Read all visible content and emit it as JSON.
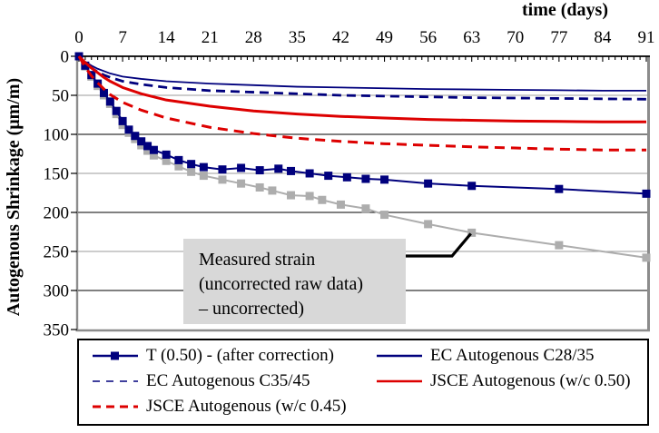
{
  "colors": {
    "navy": "#00007D",
    "red": "#DD0000",
    "gray": "#ADADAD",
    "grid_dark": "#000000",
    "grid_light": "#9B9B9B",
    "plot_border": "#8C8C8C",
    "annotation_bg": "#D8D8D8"
  },
  "axes": {
    "x_title": "time (days)",
    "y_title": "Autogenous Shrinkage (μm/m)"
  },
  "annotation": {
    "line1": "Measured strain",
    "line2": "(uncorrected raw data)",
    "line3": "– uncorrected)",
    "target": {
      "day": 63,
      "value": 226
    }
  },
  "legend": {
    "items": [
      {
        "label": "T (0.50) - (after correction)",
        "color": "navy",
        "style": "solid",
        "marker": "square"
      },
      {
        "label": "EC Autogenous C28/35",
        "color": "navy",
        "style": "solid",
        "marker": "none"
      },
      {
        "label": "EC Autogenous C35/45",
        "color": "navy",
        "style": "dashed",
        "marker": "none"
      },
      {
        "label": "JSCE Autogenous (w/c 0.50)",
        "color": "red",
        "style": "solid",
        "marker": "none"
      },
      {
        "label": "JSCE Autogenous (w/c 0.45)",
        "color": "red",
        "style": "dashed",
        "marker": "none"
      }
    ]
  },
  "chart_data": {
    "type": "line",
    "title": "",
    "xlabel": "time (days)",
    "ylabel": "Autogenous Shrinkage (μm/m)",
    "x_ticks": [
      0,
      7,
      14,
      21,
      28,
      35,
      42,
      49,
      56,
      63,
      70,
      77,
      84,
      91
    ],
    "y_ticks": [
      0,
      50,
      100,
      150,
      200,
      250,
      300,
      350
    ],
    "xlim": [
      0,
      91
    ],
    "ylim": [
      0,
      350
    ],
    "y_axis_inverted": true,
    "grid": "horizontal, every 50 μm/m, alternating dark and light lines",
    "legend_position": "bottom box, two columns",
    "series": [
      {
        "name": "Measured strain (uncorrected raw data)",
        "color": "gray",
        "style": "solid",
        "width": 2,
        "marker": "square",
        "x": [
          0,
          1,
          2,
          3,
          4,
          5,
          6,
          7,
          8,
          9,
          10,
          11,
          12,
          14,
          16,
          18,
          20,
          23,
          26,
          29,
          31,
          34,
          37,
          39,
          42,
          46,
          49,
          56,
          63,
          77,
          91
        ],
        "y": [
          0,
          13,
          26,
          38,
          50,
          61,
          74,
          88,
          98,
          106,
          114,
          121,
          127,
          134,
          141,
          148,
          153,
          158,
          163,
          168,
          172,
          178,
          179,
          184,
          190,
          195,
          203,
          215,
          226,
          242,
          258
        ]
      },
      {
        "name": "T (0.50) - (after correction)",
        "color": "navy",
        "style": "solid",
        "width": 2,
        "marker": "square",
        "x": [
          0,
          1,
          2,
          3,
          4,
          5,
          6,
          7,
          8,
          9,
          10,
          11,
          12,
          14,
          16,
          18,
          20,
          23,
          26,
          29,
          32,
          34,
          37,
          40,
          43,
          46,
          49,
          56,
          63,
          77,
          91
        ],
        "y": [
          0,
          12,
          24,
          35,
          47,
          58,
          70,
          83,
          94,
          102,
          109,
          115,
          120,
          126,
          133,
          138,
          142,
          145,
          143,
          146,
          144,
          147,
          150,
          153,
          155,
          157,
          158,
          163,
          166,
          170,
          176
        ]
      },
      {
        "name": "EC Autogenous C28/35",
        "color": "navy",
        "style": "solid",
        "width": 1.8,
        "marker": "none",
        "x": [
          0,
          1,
          2,
          3,
          4,
          5,
          7,
          10,
          14,
          21,
          28,
          35,
          42,
          49,
          56,
          63,
          70,
          77,
          84,
          91
        ],
        "y": [
          0,
          7,
          12,
          16,
          19,
          22,
          26,
          29,
          32,
          35,
          37,
          39,
          40,
          41,
          42,
          42.5,
          43,
          43.5,
          44,
          44
        ]
      },
      {
        "name": "EC Autogenous C35/45",
        "color": "navy",
        "style": "dashed",
        "dash": "10 6",
        "width": 2.8,
        "marker": "none",
        "x": [
          0,
          1,
          2,
          3,
          4,
          5,
          7,
          10,
          14,
          21,
          28,
          35,
          42,
          49,
          56,
          63,
          70,
          77,
          84,
          91
        ],
        "y": [
          0,
          9,
          15,
          20,
          24,
          27,
          32,
          36,
          40,
          44,
          46,
          48,
          50,
          51,
          52,
          53,
          53.5,
          54,
          54.5,
          55
        ]
      },
      {
        "name": "JSCE Autogenous (w/c 0.50)",
        "color": "red",
        "style": "solid",
        "width": 3,
        "marker": "none",
        "x": [
          0,
          1,
          2,
          3,
          4,
          5,
          7,
          10,
          14,
          21,
          28,
          35,
          42,
          49,
          56,
          63,
          70,
          77,
          84,
          91
        ],
        "y": [
          0,
          8,
          15,
          21,
          27,
          32,
          40,
          48,
          56,
          64,
          70,
          74,
          77,
          79,
          81,
          82,
          83,
          83.5,
          84,
          84
        ]
      },
      {
        "name": "JSCE Autogenous (w/c 0.45)",
        "color": "red",
        "style": "dashed",
        "dash": "11 7",
        "width": 3,
        "marker": "none",
        "x": [
          0,
          1,
          2,
          3,
          4,
          5,
          7,
          10,
          14,
          21,
          28,
          35,
          42,
          49,
          56,
          63,
          70,
          77,
          84,
          91
        ],
        "y": [
          0,
          14,
          25,
          34,
          42,
          49,
          59,
          69,
          79,
          91,
          99,
          105,
          109,
          112,
          114,
          116,
          117.5,
          119,
          120,
          120
        ]
      }
    ]
  }
}
